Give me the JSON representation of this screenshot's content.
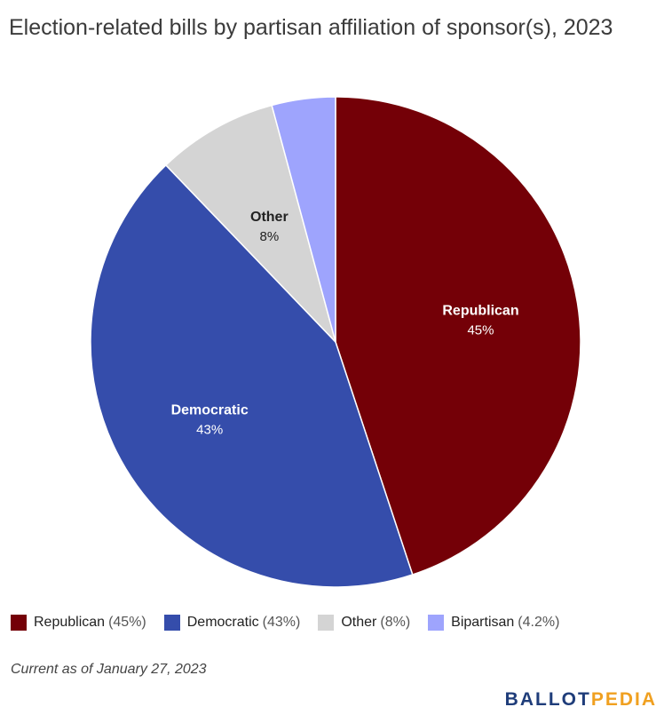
{
  "title": "Election-related bills by partisan affiliation of sponsor(s), 2023",
  "chart_data": {
    "type": "pie",
    "title": "Election-related bills by partisan affiliation of sponsor(s), 2023",
    "slices": [
      {
        "label": "Republican",
        "value": 45,
        "display": "45%",
        "legend_pct": "(45%)",
        "color": "#740007",
        "label_color": "#ffffff",
        "show_label": true
      },
      {
        "label": "Democratic",
        "value": 43,
        "display": "43%",
        "legend_pct": "(43%)",
        "color": "#354dab",
        "label_color": "#ffffff",
        "show_label": true
      },
      {
        "label": "Other",
        "value": 8,
        "display": "8%",
        "legend_pct": "(8%)",
        "color": "#d4d4d4",
        "label_color": "#222222",
        "show_label": true
      },
      {
        "label": "Bipartisan",
        "value": 4.2,
        "display": "4.2%",
        "legend_pct": "(4.2%)",
        "color": "#9ea4fd",
        "label_color": "#222222",
        "show_label": false
      }
    ],
    "legend_position": "bottom-left"
  },
  "note": "Current as of January 27, 2023",
  "logo": {
    "part1": "BALLOT",
    "part2": "PEDIA"
  }
}
